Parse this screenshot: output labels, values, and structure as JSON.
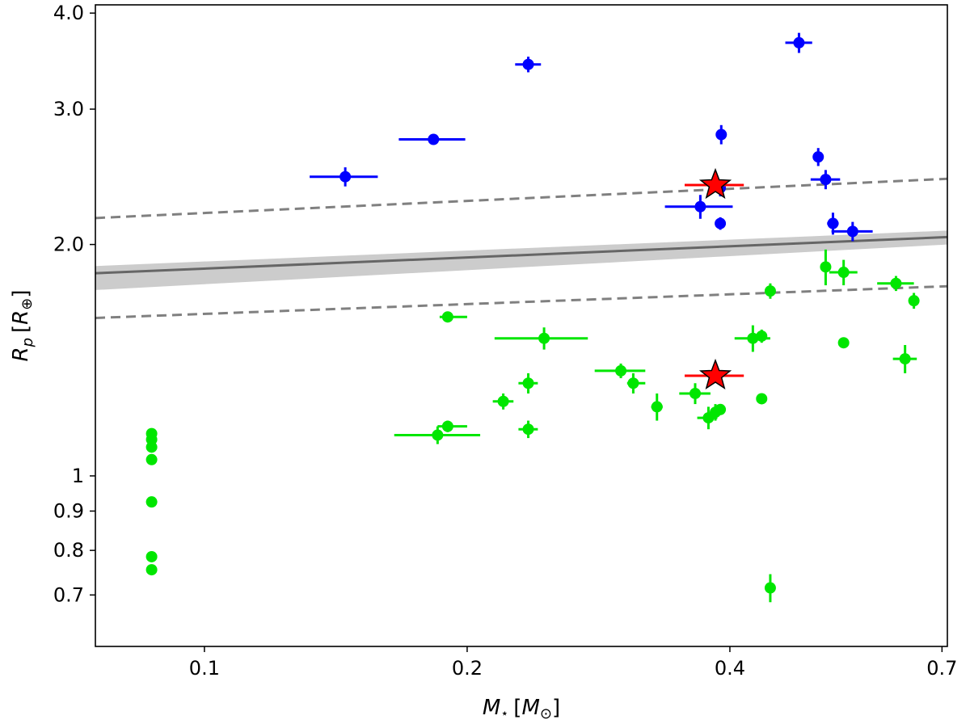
{
  "chart_data": {
    "type": "scatter",
    "title": "",
    "xlabel": "M⋆ [M⊙]",
    "ylabel": "Rp [R⊕]",
    "xscale": "log",
    "yscale": "log",
    "xlim": [
      0.075,
      0.71
    ],
    "ylim": [
      0.6,
      4.1
    ],
    "xticks": [
      {
        "value": 0.1,
        "label": "0.1"
      },
      {
        "value": 0.2,
        "label": "0.2"
      },
      {
        "value": 0.4,
        "label": "0.4"
      },
      {
        "value": 0.7,
        "label": "0.7"
      }
    ],
    "yticks": [
      {
        "value": 0.7,
        "label": "0.7"
      },
      {
        "value": 0.8,
        "label": "0.8"
      },
      {
        "value": 0.9,
        "label": "0.9"
      },
      {
        "value": 1.0,
        "label": "1"
      },
      {
        "value": 2.0,
        "label": "2.0"
      },
      {
        "value": 3.0,
        "label": "3.0"
      },
      {
        "value": 4.0,
        "label": "4.0"
      }
    ],
    "fit_line": {
      "color": "#666666",
      "x": [
        0.075,
        0.71
      ],
      "y": [
        1.835,
        2.045
      ],
      "band_lower": [
        1.745,
        2.0
      ],
      "band_upper": [
        1.875,
        2.085
      ],
      "band_color": "#cccccc"
    },
    "dashed_lines": {
      "color": "#808080",
      "upper": {
        "x": [
          0.075,
          0.71
        ],
        "y": [
          2.165,
          2.435
        ]
      },
      "lower": {
        "x": [
          0.075,
          0.71
        ],
        "y": [
          1.605,
          1.765
        ]
      }
    },
    "series": [
      {
        "name": "blue",
        "color": "#0000ff",
        "points": [
          {
            "x": 0.145,
            "y": 2.45,
            "xerr": [
              0.013,
              0.013
            ],
            "yerr": [
              0.07,
              0.07
            ]
          },
          {
            "x": 0.183,
            "y": 2.74,
            "xerr": [
              0.016,
              0.016
            ],
            "yerr": [
              0.0,
              0.0
            ]
          },
          {
            "x": 0.235,
            "y": 3.43,
            "xerr": [
              0.008,
              0.008
            ],
            "yerr": [
              0.08,
              0.08
            ]
          },
          {
            "x": 0.37,
            "y": 2.24,
            "xerr": [
              0.033,
              0.033
            ],
            "yerr": [
              0.08,
              0.08
            ]
          },
          {
            "x": 0.39,
            "y": 2.37,
            "xerr": [
              0.004,
              0.004
            ],
            "yerr": [
              0.06,
              0.06
            ]
          },
          {
            "x": 0.391,
            "y": 2.78,
            "xerr": [
              0.005,
              0.005
            ],
            "yerr": [
              0.08,
              0.08
            ]
          },
          {
            "x": 0.39,
            "y": 2.13,
            "xerr": [
              0.005,
              0.005
            ],
            "yerr": [
              0.04,
              0.04
            ]
          },
          {
            "x": 0.48,
            "y": 3.66,
            "xerr": [
              0.017,
              0.017
            ],
            "yerr": [
              0.11,
              0.11
            ]
          },
          {
            "x": 0.505,
            "y": 2.6,
            "xerr": [
              0.0,
              0.0
            ],
            "yerr": [
              0.07,
              0.07
            ]
          },
          {
            "x": 0.515,
            "y": 2.43,
            "xerr": [
              0.02,
              0.02
            ],
            "yerr": [
              0.07,
              0.07
            ]
          },
          {
            "x": 0.525,
            "y": 2.13,
            "xerr": [
              0.008,
              0.008
            ],
            "yerr": [
              0.07,
              0.07
            ]
          },
          {
            "x": 0.553,
            "y": 2.08,
            "xerr": [
              0.03,
              0.03
            ],
            "yerr": [
              0.06,
              0.06
            ]
          }
        ]
      },
      {
        "name": "green",
        "color": "#00e600",
        "points": [
          {
            "x": 0.087,
            "y": 1.135,
            "xerr": [
              0.0,
              0.0
            ],
            "yerr": [
              0.0,
              0.0
            ]
          },
          {
            "x": 0.087,
            "y": 1.115,
            "xerr": [
              0.0,
              0.0
            ],
            "yerr": [
              0.0,
              0.0
            ]
          },
          {
            "x": 0.087,
            "y": 1.09,
            "xerr": [
              0.0,
              0.0
            ],
            "yerr": [
              0.0,
              0.0
            ]
          },
          {
            "x": 0.087,
            "y": 1.05,
            "xerr": [
              0.0,
              0.0
            ],
            "yerr": [
              0.0,
              0.0
            ]
          },
          {
            "x": 0.087,
            "y": 0.925,
            "xerr": [
              0.0,
              0.0
            ],
            "yerr": [
              0.0,
              0.0
            ]
          },
          {
            "x": 0.087,
            "y": 0.785,
            "xerr": [
              0.0,
              0.0
            ],
            "yerr": [
              0.0,
              0.0
            ]
          },
          {
            "x": 0.087,
            "y": 0.755,
            "xerr": [
              0.0,
              0.0
            ],
            "yerr": [
              0.0,
              0.0
            ]
          },
          {
            "x": 0.185,
            "y": 1.13,
            "xerr": [
              0.02,
              0.022
            ],
            "yerr": [
              0.03,
              0.03
            ]
          },
          {
            "x": 0.19,
            "y": 1.16,
            "xerr": [
              0.005,
              0.01
            ],
            "yerr": [
              0.02,
              0.02
            ]
          },
          {
            "x": 0.19,
            "y": 1.61,
            "xerr": [
              0.004,
              0.01
            ],
            "yerr": [
              0.02,
              0.02
            ]
          },
          {
            "x": 0.22,
            "y": 1.25,
            "xerr": [
              0.006,
              0.006
            ],
            "yerr": [
              0.03,
              0.03
            ]
          },
          {
            "x": 0.235,
            "y": 1.32,
            "xerr": [
              0.006,
              0.006
            ],
            "yerr": [
              0.04,
              0.04
            ]
          },
          {
            "x": 0.235,
            "y": 1.15,
            "xerr": [
              0.006,
              0.006
            ],
            "yerr": [
              0.03,
              0.03
            ]
          },
          {
            "x": 0.245,
            "y": 1.51,
            "xerr": [
              0.03,
              0.03
            ],
            "yerr": [
              0.05,
              0.05
            ]
          },
          {
            "x": 0.3,
            "y": 1.37,
            "xerr": [
              0.02,
              0.02
            ],
            "yerr": [
              0.03,
              0.03
            ]
          },
          {
            "x": 0.31,
            "y": 1.32,
            "xerr": [
              0.005,
              0.01
            ],
            "yerr": [
              0.04,
              0.04
            ]
          },
          {
            "x": 0.33,
            "y": 1.23,
            "xerr": [
              0.005,
              0.005
            ],
            "yerr": [
              0.05,
              0.05
            ]
          },
          {
            "x": 0.365,
            "y": 1.28,
            "xerr": [
              0.015,
              0.015
            ],
            "yerr": [
              0.04,
              0.04
            ]
          },
          {
            "x": 0.378,
            "y": 1.19,
            "xerr": [
              0.011,
              0.009
            ],
            "yerr": [
              0.04,
              0.04
            ]
          },
          {
            "x": 0.385,
            "y": 1.21,
            "xerr": [
              0.005,
              0.005
            ],
            "yerr": [
              0.03,
              0.03
            ]
          },
          {
            "x": 0.39,
            "y": 1.22,
            "xerr": [
              0.005,
              0.005
            ],
            "yerr": [
              0.02,
              0.02
            ]
          },
          {
            "x": 0.425,
            "y": 1.51,
            "xerr": [
              0.02,
              0.02
            ],
            "yerr": [
              0.06,
              0.06
            ]
          },
          {
            "x": 0.435,
            "y": 1.52,
            "xerr": [
              0.004,
              0.004
            ],
            "yerr": [
              0.03,
              0.03
            ]
          },
          {
            "x": 0.435,
            "y": 1.26,
            "xerr": [
              0.004,
              0.004
            ],
            "yerr": [
              0.0,
              0.0
            ]
          },
          {
            "x": 0.445,
            "y": 1.74,
            "xerr": [
              0.004,
              0.004
            ],
            "yerr": [
              0.04,
              0.04
            ]
          },
          {
            "x": 0.445,
            "y": 0.715,
            "xerr": [
              0.004,
              0.004
            ],
            "yerr": [
              0.03,
              0.03
            ]
          },
          {
            "x": 0.515,
            "y": 1.87,
            "xerr": [
              0.004,
              0.004
            ],
            "yerr": [
              0.1,
              0.1
            ]
          },
          {
            "x": 0.54,
            "y": 1.84,
            "xerr": [
              0.02,
              0.02
            ],
            "yerr": [
              0.07,
              0.07
            ]
          },
          {
            "x": 0.54,
            "y": 1.49,
            "xerr": [
              0.005,
              0.005
            ],
            "yerr": [
              0.02,
              0.02
            ]
          },
          {
            "x": 0.62,
            "y": 1.78,
            "xerr": [
              0.03,
              0.03
            ],
            "yerr": [
              0.04,
              0.04
            ]
          },
          {
            "x": 0.635,
            "y": 1.42,
            "xerr": [
              0.02,
              0.02
            ],
            "yerr": [
              0.06,
              0.06
            ]
          },
          {
            "x": 0.65,
            "y": 1.69,
            "xerr": [
              0.005,
              0.005
            ],
            "yerr": [
              0.04,
              0.04
            ]
          }
        ]
      },
      {
        "name": "red-stars",
        "color": "#ff0000",
        "marker": "star",
        "points": [
          {
            "x": 0.385,
            "y": 2.39,
            "xerr": [
              0.03,
              0.03
            ],
            "yerr": [
              0.0,
              0.0
            ]
          },
          {
            "x": 0.385,
            "y": 1.35,
            "xerr": [
              0.03,
              0.03
            ],
            "yerr": [
              0.0,
              0.0
            ]
          }
        ]
      }
    ]
  }
}
